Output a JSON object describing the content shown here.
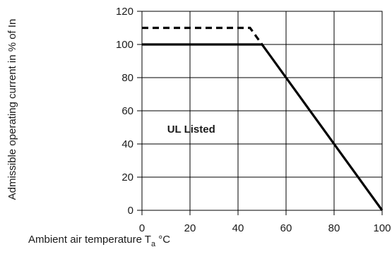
{
  "chart_data": {
    "type": "line",
    "title": "",
    "xlabel": "Ambient air temperature T",
    "xlabel_subscript": "a",
    "xlabel_unit": " °C",
    "ylabel": "Admissible operating current in % of In",
    "xlim": [
      0,
      100
    ],
    "ylim": [
      0,
      120
    ],
    "x_ticks": [
      0,
      20,
      40,
      60,
      80,
      100
    ],
    "y_ticks": [
      0,
      20,
      40,
      60,
      80,
      100,
      120
    ],
    "grid": true,
    "annotations": [
      {
        "text": "UL Listed",
        "x": 10.5,
        "y": 49
      }
    ],
    "series": [
      {
        "style": "dashed",
        "color": "#000000",
        "x": [
          0,
          45,
          50
        ],
        "y": [
          110,
          110,
          100
        ]
      },
      {
        "style": "solid",
        "color": "#000000",
        "x": [
          0,
          50,
          100
        ],
        "y": [
          100,
          100,
          0
        ]
      }
    ]
  }
}
